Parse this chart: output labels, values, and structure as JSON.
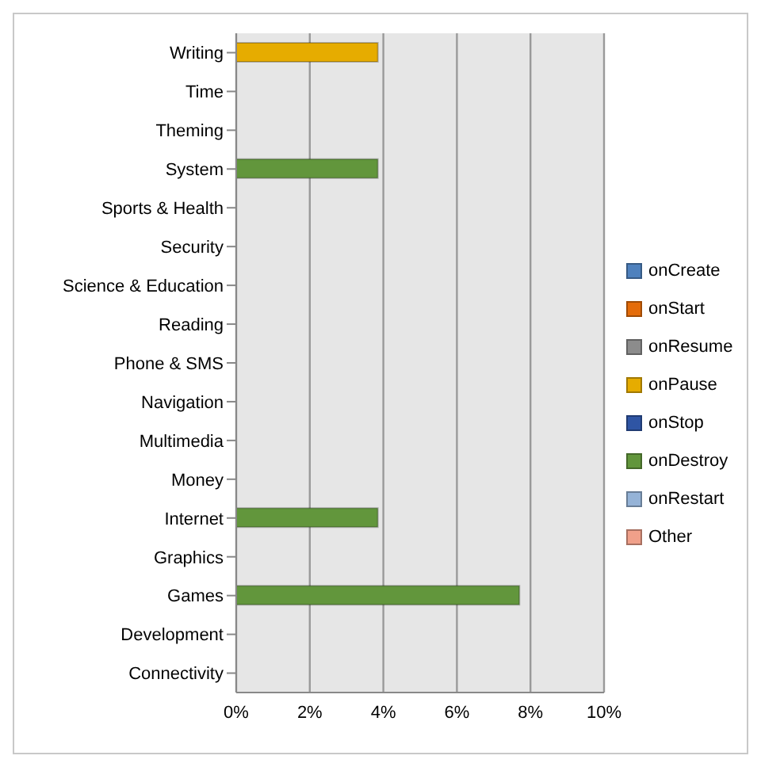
{
  "chart_data": {
    "type": "bar",
    "orientation": "horizontal",
    "stacked": true,
    "categories": [
      "Writing",
      "Time",
      "Theming",
      "System",
      "Sports & Health",
      "Security",
      "Science & Education",
      "Reading",
      "Phone & SMS",
      "Navigation",
      "Multimedia",
      "Money",
      "Internet",
      "Graphics",
      "Games",
      "Development",
      "Connectivity"
    ],
    "series": [
      {
        "name": "onCreate",
        "color": "#4f81bd",
        "values": [
          0,
          0,
          0,
          0,
          0,
          0,
          0,
          0,
          0,
          0,
          0,
          0,
          0,
          0,
          0,
          0,
          0
        ]
      },
      {
        "name": "onStart",
        "color": "#e46c0a",
        "values": [
          0,
          0,
          0,
          0,
          0,
          0,
          0,
          0,
          0,
          0,
          0,
          0,
          0,
          0,
          0,
          0,
          0
        ]
      },
      {
        "name": "onResume",
        "color": "#8c8c8c",
        "values": [
          0,
          0,
          0,
          0,
          0,
          0,
          0,
          0,
          0,
          0,
          0,
          0,
          0,
          0,
          0,
          0,
          0
        ]
      },
      {
        "name": "onPause",
        "color": "#e6ac00",
        "values": [
          3.85,
          0,
          0,
          0,
          0,
          0,
          0,
          0,
          0,
          0,
          0,
          0,
          0,
          0,
          0,
          0,
          0
        ]
      },
      {
        "name": "onStop",
        "color": "#2f55a4",
        "values": [
          0,
          0,
          0,
          0,
          0,
          0,
          0,
          0,
          0,
          0,
          0,
          0,
          0,
          0,
          0,
          0,
          0
        ]
      },
      {
        "name": "onDestroy",
        "color": "#62963c",
        "values": [
          0,
          0,
          0,
          3.85,
          0,
          0,
          0,
          0,
          0,
          0,
          0,
          0,
          3.85,
          0,
          7.7,
          0,
          0
        ]
      },
      {
        "name": "onRestart",
        "color": "#95b3d7",
        "values": [
          0,
          0,
          0,
          0,
          0,
          0,
          0,
          0,
          0,
          0,
          0,
          0,
          0,
          0,
          0,
          0,
          0
        ]
      },
      {
        "name": "Other",
        "color": "#f0a08a",
        "values": [
          0,
          0,
          0,
          0,
          0,
          0,
          0,
          0,
          0,
          0,
          0,
          0,
          0,
          0,
          0,
          0,
          0
        ]
      }
    ],
    "xlim": [
      0,
      10
    ],
    "xticks": [
      {
        "value": 0,
        "label": "0%"
      },
      {
        "value": 2,
        "label": "2%"
      },
      {
        "value": 4,
        "label": "4%"
      },
      {
        "value": 6,
        "label": "6%"
      },
      {
        "value": 8,
        "label": "8%"
      },
      {
        "value": 10,
        "label": "10%"
      }
    ],
    "grid": "x",
    "legend": "right"
  }
}
